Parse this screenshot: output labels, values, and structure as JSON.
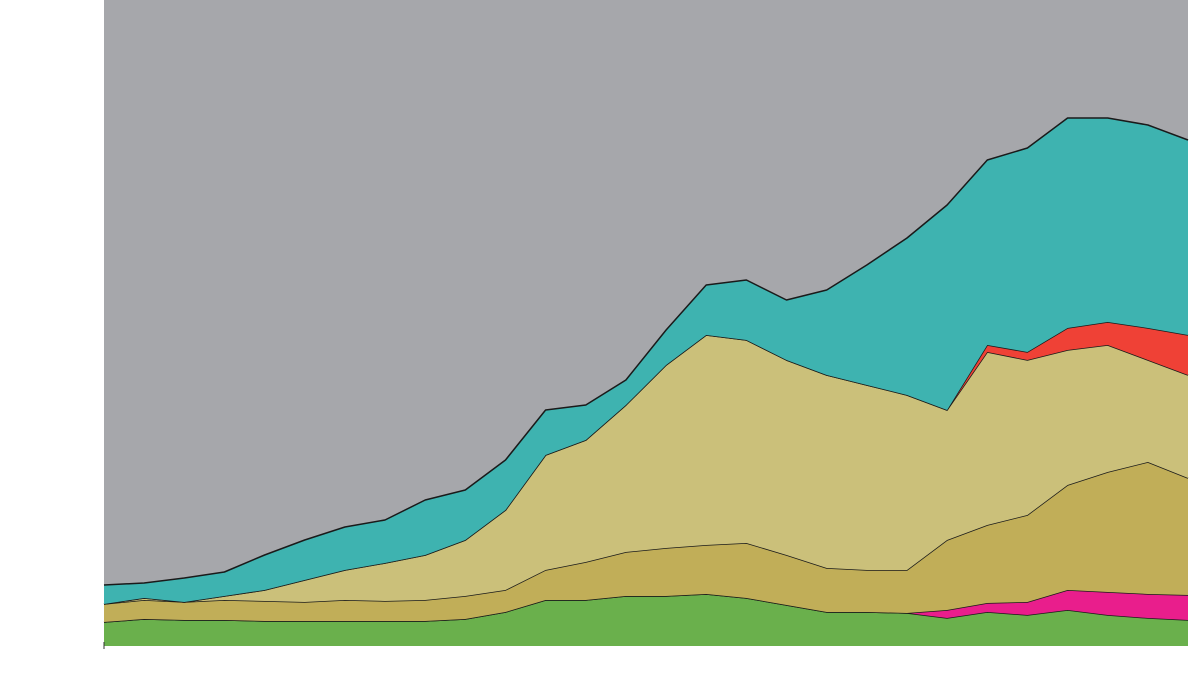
{
  "chart_data": {
    "type": "stacked-area",
    "background": "#a6a7ab",
    "categories": [
      null,
      null,
      null,
      null,
      null,
      null,
      null,
      null,
      null,
      null,
      null,
      null,
      null,
      null,
      null,
      null,
      null,
      null,
      null,
      null,
      null,
      null,
      null,
      null,
      null,
      null,
      null,
      null
    ],
    "ylim": [
      0,
      646
    ],
    "series": [
      {
        "color": "#6ab04c",
        "values": [
          24,
          27,
          26,
          26,
          25,
          25,
          25,
          25,
          25,
          27,
          34,
          46,
          46,
          50,
          50,
          52,
          48,
          41,
          34,
          34,
          33,
          28,
          34,
          31,
          36,
          31,
          28,
          26
        ]
      },
      {
        "color": "#e91e8c",
        "values": [
          0,
          0,
          0,
          0,
          0,
          0,
          0,
          0,
          0,
          0,
          0,
          0,
          0,
          0,
          0,
          0,
          0,
          0,
          0,
          0,
          0,
          8,
          9,
          13,
          20,
          23,
          24,
          25
        ]
      },
      {
        "color": "#c1ae58",
        "values": [
          18,
          19,
          18,
          20,
          20,
          19,
          21,
          20,
          21,
          23,
          22,
          30,
          38,
          44,
          48,
          49,
          55,
          50,
          44,
          42,
          43,
          70,
          78,
          87,
          105,
          120,
          132,
          117
        ]
      },
      {
        "color": "#cbc07a",
        "values": [
          0,
          2,
          0,
          4,
          11,
          22,
          30,
          38,
          45,
          56,
          80,
          115,
          122,
          147,
          183,
          210,
          203,
          195,
          193,
          185,
          175,
          130,
          173,
          155,
          135,
          127,
          102,
          103
        ]
      },
      {
        "color": "#ef4136",
        "values": [
          0,
          0,
          0,
          0,
          0,
          0,
          0,
          0,
          0,
          0,
          0,
          0,
          0,
          0,
          0,
          0,
          0,
          0,
          0,
          0,
          0,
          0,
          7,
          8,
          22,
          23,
          32,
          40
        ]
      },
      {
        "color": "#3eb3b0",
        "values": [
          19,
          15,
          24,
          24,
          35,
          40,
          43,
          43,
          55,
          50,
          50,
          45,
          35,
          25,
          35,
          50,
          60,
          60,
          85,
          120,
          157,
          205,
          185,
          204,
          210,
          204,
          203,
          195
        ]
      }
    ]
  }
}
